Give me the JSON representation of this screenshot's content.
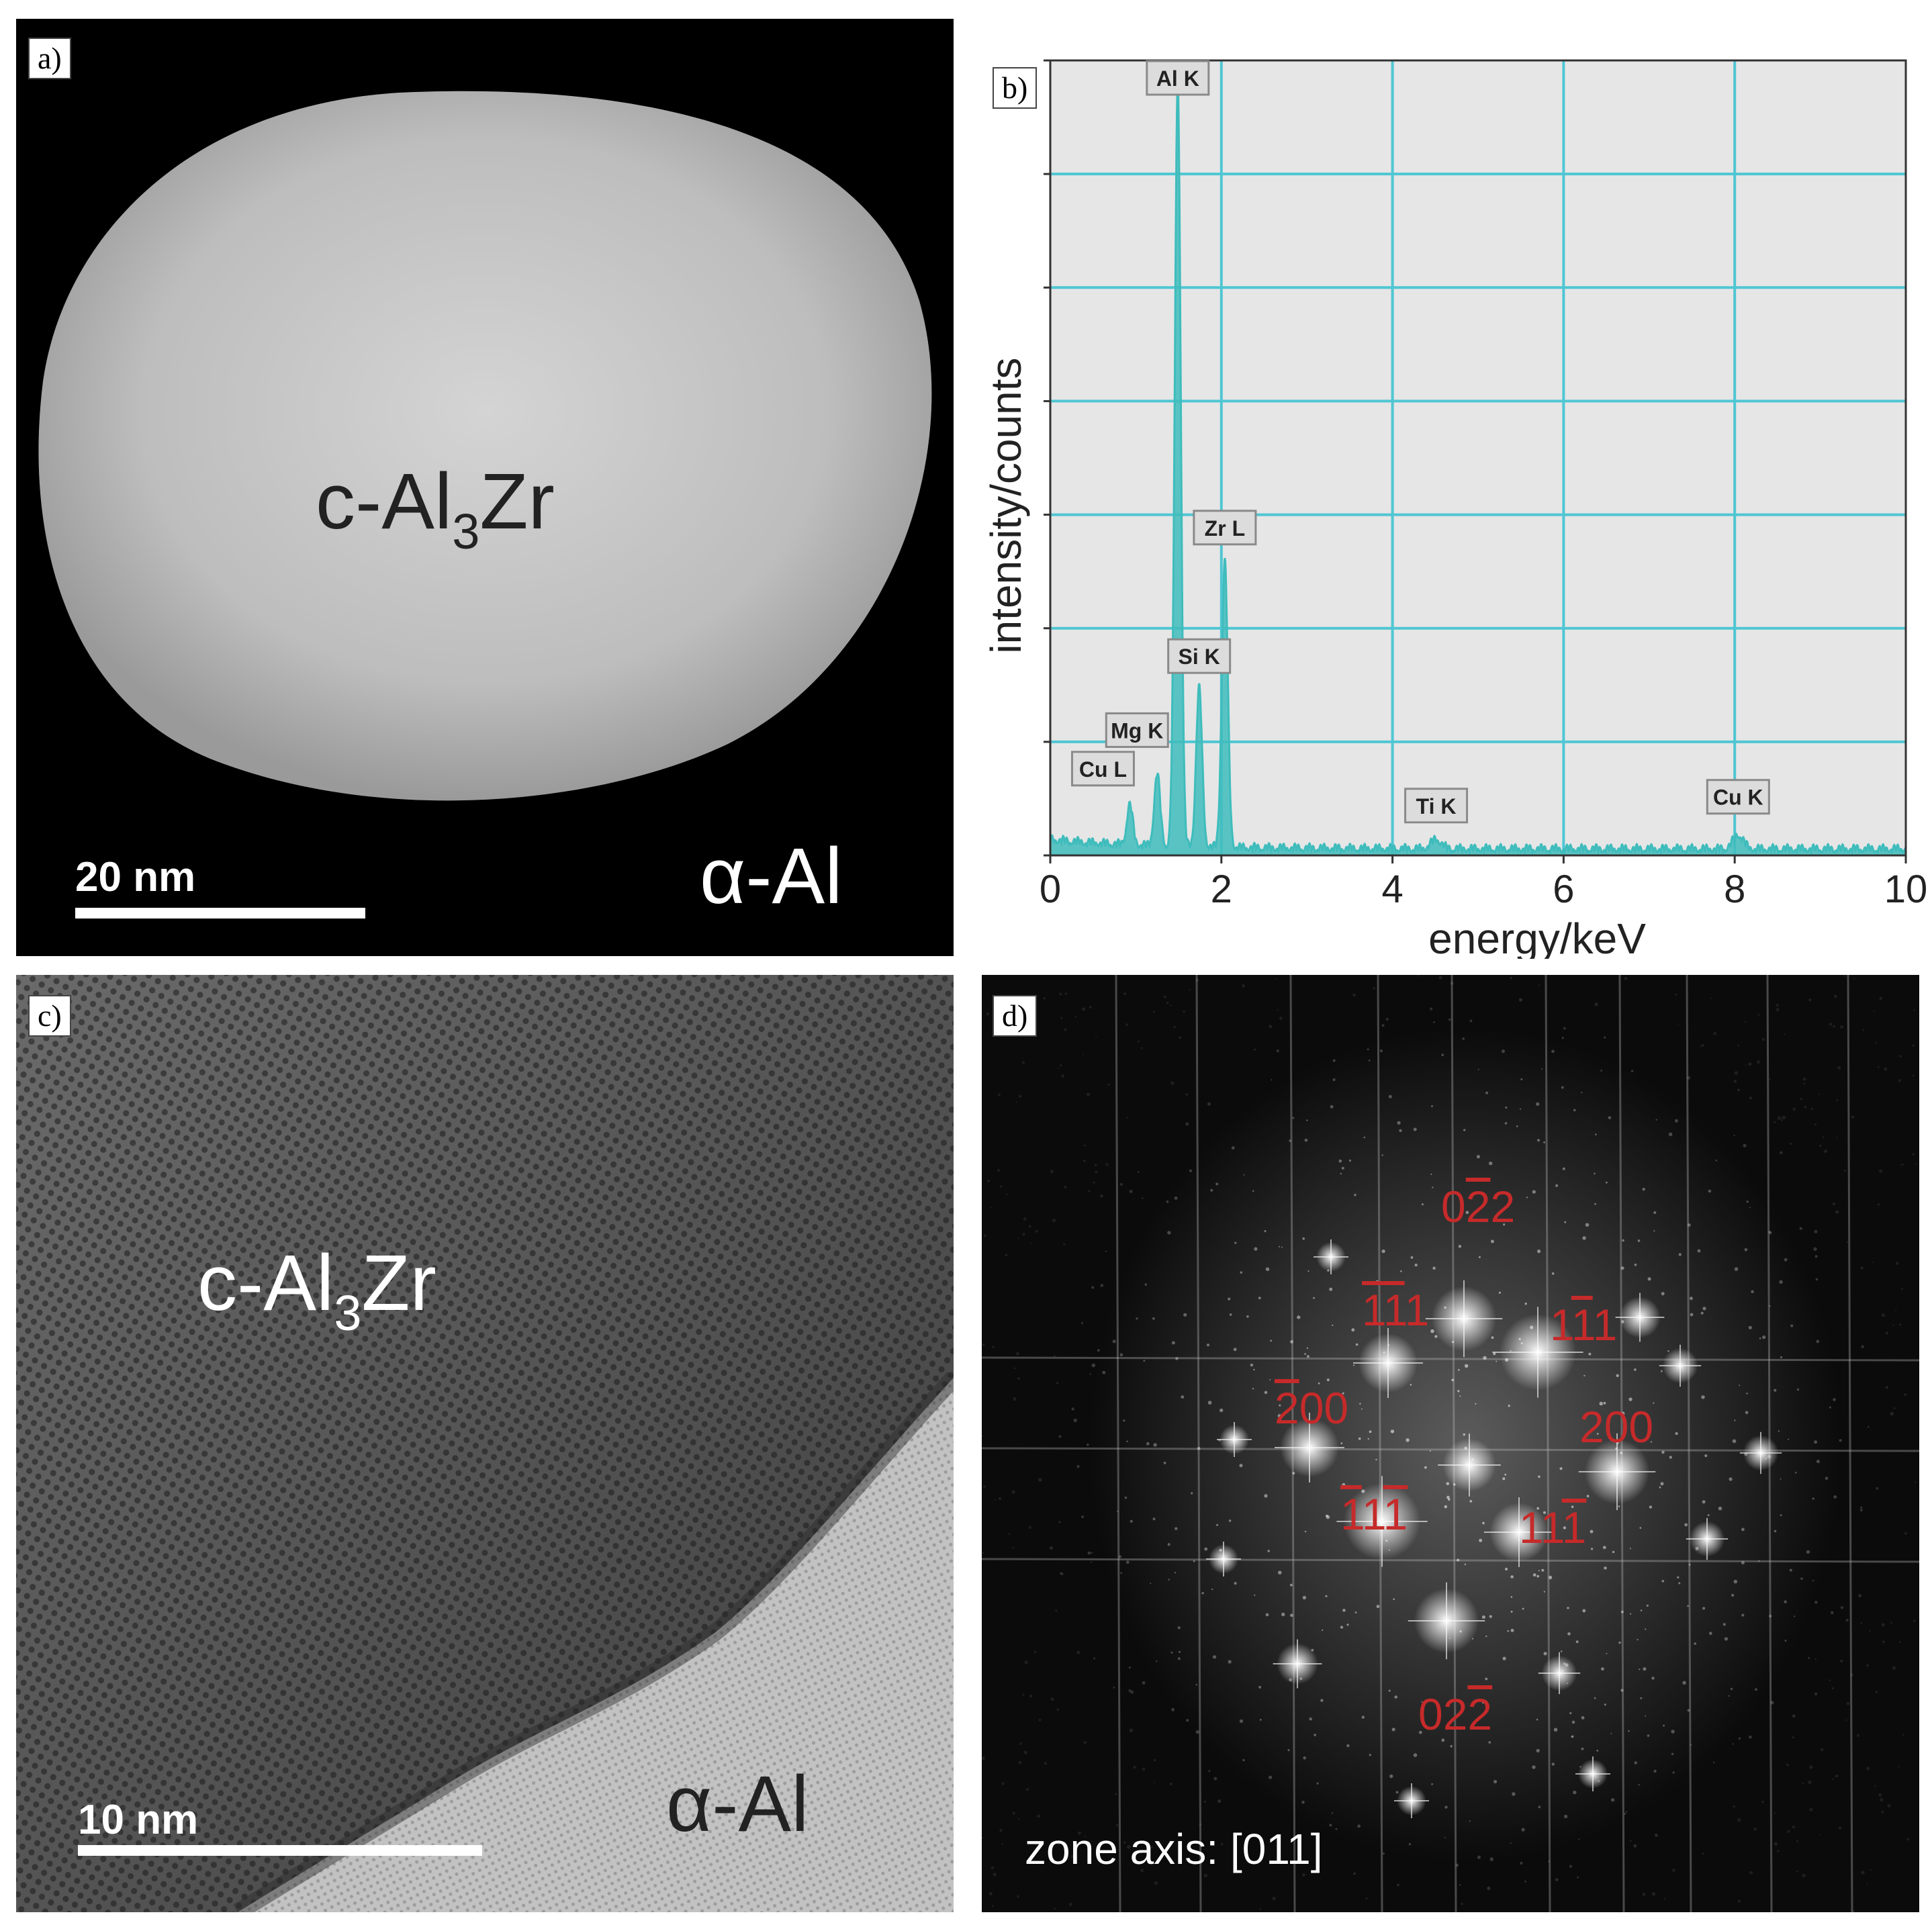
{
  "panels": {
    "a": {
      "label": "a)",
      "phase_precipitate": {
        "prefix": "c-Al",
        "sub": "3",
        "suffix": "Zr"
      },
      "phase_matrix": "α-Al",
      "scale_bar": "20 nm"
    },
    "b": {
      "label": "b)"
    },
    "c": {
      "label": "c)",
      "phase_precipitate": {
        "prefix": "c-Al",
        "sub": "3",
        "suffix": "Zr"
      },
      "phase_matrix": "α-Al",
      "scale_bar": "10 nm"
    },
    "d": {
      "label": "d)",
      "zone_axis": "zone axis: [011]",
      "spots": [
        {
          "pre": "0",
          "b1": "2",
          "mid": "",
          "b2": "",
          "post": "2"
        },
        {
          "pre": "",
          "b1": "1",
          "mid": "1",
          "b2": "",
          "post": "1"
        },
        {
          "pre": "1",
          "b1": "1",
          "mid": "",
          "b2": "",
          "post": "1"
        },
        {
          "pre": "",
          "b1": "2",
          "mid": "00",
          "b2": "",
          "post": ""
        },
        {
          "pre": "200",
          "b1": "",
          "mid": "",
          "b2": "",
          "post": ""
        },
        {
          "pre": "",
          "b1": "1",
          "mid": "1",
          "b2": "1",
          "post": ""
        },
        {
          "pre": "11",
          "b1": "1",
          "mid": "",
          "b2": "",
          "post": ""
        },
        {
          "pre": "02",
          "b1": "2",
          "mid": "",
          "b2": "",
          "post": ""
        }
      ]
    }
  },
  "chart_data": {
    "type": "line",
    "xlabel": "energy/keV",
    "ylabel": "intensity/counts",
    "xlim": [
      0,
      10
    ],
    "xticks": [
      0,
      2,
      4,
      6,
      8,
      10
    ],
    "ylim": [
      0,
      1
    ],
    "grid": true,
    "series_color": "#3fbcbc",
    "grid_color": "#4fc6d3",
    "background_color": "#e6e6e6",
    "peaks": [
      {
        "label": "Cu L",
        "energy": 0.93,
        "height": 0.05
      },
      {
        "label": "Mg K",
        "energy": 1.25,
        "height": 0.09
      },
      {
        "label": "Al K",
        "energy": 1.49,
        "height": 0.96
      },
      {
        "label": "Si K",
        "energy": 1.74,
        "height": 0.2
      },
      {
        "label": "Zr L",
        "energy": 2.04,
        "height": 0.36
      },
      {
        "label": "Ti K",
        "energy": 4.51,
        "height": 0.012
      },
      {
        "label": "Cu K",
        "energy": 8.04,
        "height": 0.018
      }
    ]
  }
}
